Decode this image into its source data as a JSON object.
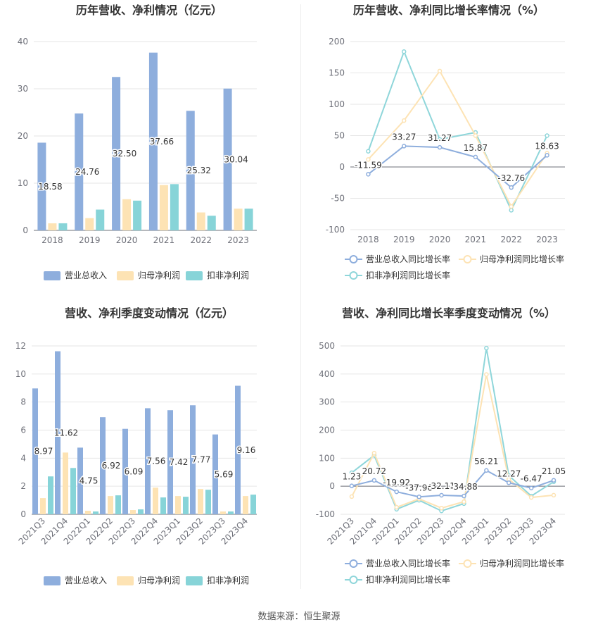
{
  "source": "数据来源：恒生聚源",
  "chart_data": [
    {
      "type": "bar",
      "title": "历年营收、净利情况（亿元）",
      "categories": [
        "2018",
        "2019",
        "2020",
        "2021",
        "2022",
        "2023"
      ],
      "ylim": [
        0,
        40
      ],
      "yticks": [
        0,
        10,
        20,
        30,
        40
      ],
      "grid": true,
      "legend_placement": "bottom",
      "series": [
        {
          "name": "营业总收入",
          "color": "#8eaedd",
          "values": [
            18.58,
            24.76,
            32.5,
            37.66,
            25.32,
            30.04
          ],
          "labels": [
            "18.58",
            "24.76",
            "32.50",
            "37.66",
            "25.32",
            "30.04"
          ]
        },
        {
          "name": "归母净利润",
          "color": "#fde3b4",
          "values": [
            1.5,
            2.6,
            6.6,
            9.6,
            3.8,
            4.6
          ]
        },
        {
          "name": "扣非净利润",
          "color": "#87d4d8",
          "values": [
            1.5,
            4.4,
            6.3,
            9.8,
            3.1,
            4.6
          ]
        }
      ]
    },
    {
      "type": "line",
      "title": "历年营收、净利同比增长率情况（%）",
      "categories": [
        "2018",
        "2019",
        "2020",
        "2021",
        "2022",
        "2023"
      ],
      "ylim": [
        -100,
        200
      ],
      "yticks": [
        -100,
        -50,
        0,
        50,
        100,
        150,
        200
      ],
      "grid": true,
      "legend_placement": "bottom",
      "series": [
        {
          "name": "营业总收入同比增长率",
          "color": "#8eaedd",
          "values": [
            -11.59,
            33.27,
            31.27,
            15.87,
            -32.76,
            18.63
          ],
          "labels": [
            "-11.59",
            "33.27",
            "31.27",
            "15.87",
            "-32.76",
            "18.63"
          ]
        },
        {
          "name": "归母净利润同比增长率",
          "color": "#fde3b4",
          "values": [
            12,
            74,
            153,
            50,
            -63,
            22
          ]
        },
        {
          "name": "扣非净利润同比增长率",
          "color": "#8fd6da",
          "values": [
            25,
            184,
            44,
            55,
            -69,
            50
          ]
        }
      ]
    },
    {
      "type": "bar",
      "title": "营收、净利季度变动情况（亿元）",
      "categories": [
        "2021Q3",
        "2021Q4",
        "2022Q1",
        "2022Q2",
        "2022Q3",
        "2022Q4",
        "2023Q1",
        "2023Q2",
        "2023Q3",
        "2023Q4"
      ],
      "ylim": [
        0,
        12
      ],
      "yticks": [
        0,
        2,
        4,
        6,
        8,
        10,
        12
      ],
      "grid": true,
      "legend_placement": "bottom",
      "series": [
        {
          "name": "营业总收入",
          "color": "#8eaedd",
          "values": [
            8.97,
            11.62,
            4.75,
            6.92,
            6.09,
            7.56,
            7.42,
            7.77,
            5.69,
            9.16
          ],
          "labels": [
            "8.97",
            "11.62",
            "4.75",
            "6.92",
            "6.09",
            "7.56",
            "7.42",
            "7.77",
            "5.69",
            "9.16"
          ]
        },
        {
          "name": "归母净利润",
          "color": "#fde3b4",
          "values": [
            1.15,
            4.4,
            0.25,
            1.3,
            0.3,
            1.9,
            1.3,
            1.8,
            0.2,
            1.3
          ]
        },
        {
          "name": "扣非净利润",
          "color": "#87d4d8",
          "values": [
            2.7,
            3.3,
            0.2,
            1.35,
            0.35,
            1.2,
            1.25,
            1.75,
            0.2,
            1.4
          ]
        }
      ]
    },
    {
      "type": "line",
      "title": "营收、净利同比增长率季度变动情况（%）",
      "categories": [
        "2021Q3",
        "2021Q4",
        "2022Q1",
        "2022Q2",
        "2022Q3",
        "2022Q4",
        "2023Q1",
        "2023Q2",
        "2023Q3",
        "2023Q4"
      ],
      "ylim": [
        -100,
        500
      ],
      "yticks": [
        -100,
        0,
        100,
        200,
        300,
        400,
        500
      ],
      "grid": true,
      "legend_placement": "bottom",
      "series": [
        {
          "name": "营业总收入同比增长率",
          "color": "#8eaedd",
          "values": [
            1.23,
            20.72,
            -19.92,
            -37.96,
            -32.11,
            -34.88,
            56.21,
            12.27,
            -6.47,
            21.05
          ],
          "labels": [
            "1.23",
            "20.72",
            "-19.92",
            "-37.96",
            "-32.11",
            "-34.88",
            "56.21",
            "12.27",
            "-6.47",
            "21.05"
          ]
        },
        {
          "name": "归母净利润同比增长率",
          "color": "#fde3b4",
          "values": [
            -37,
            118,
            -75,
            -45,
            -78,
            -55,
            398,
            25,
            -40,
            -32
          ]
        },
        {
          "name": "扣非净利润同比增长率",
          "color": "#8fd6da",
          "values": [
            48,
            110,
            -82,
            -50,
            -88,
            -62,
            492,
            38,
            -35,
            16
          ]
        }
      ]
    }
  ]
}
